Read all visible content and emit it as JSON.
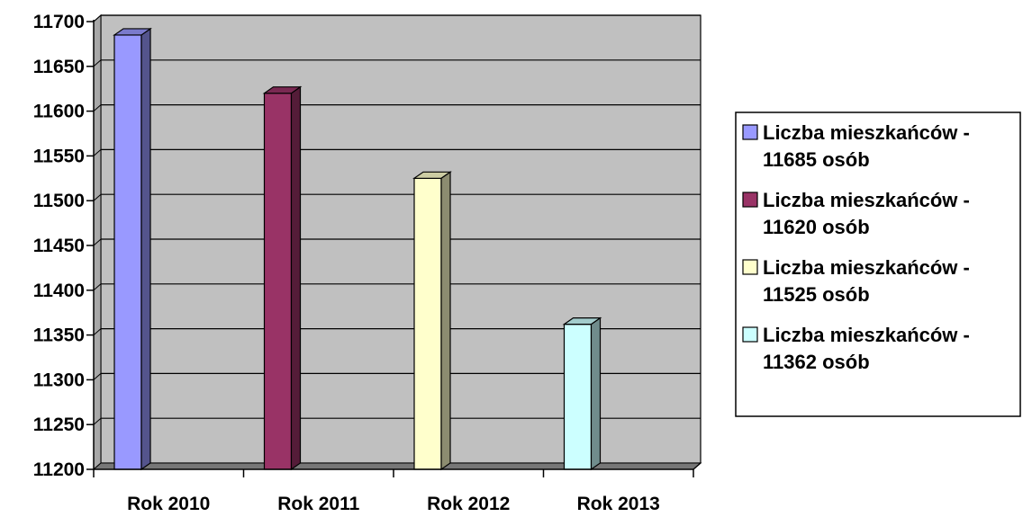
{
  "chart_data": {
    "type": "bar",
    "style": "3d-column",
    "categories": [
      "Rok 2010",
      "Rok 2011",
      "Rok 2012",
      "Rok 2013"
    ],
    "values": [
      11685,
      11620,
      11525,
      11362
    ],
    "colors": [
      "#9999ff",
      "#993366",
      "#ffffcc",
      "#ccffff"
    ],
    "ylim": [
      11200,
      11700
    ],
    "y_ticks": [
      11200,
      11250,
      11300,
      11350,
      11400,
      11450,
      11500,
      11550,
      11600,
      11650,
      11700
    ],
    "y_tick_labels": [
      "11200",
      "11250",
      "11300",
      "11350",
      "11400",
      "11450",
      "11500",
      "11550",
      "11600",
      "11650",
      "11700"
    ],
    "plot_background": "#c0c0c0",
    "grid": true,
    "legend_position": "right",
    "legend": [
      {
        "line1": "Liczba mieszkańców -",
        "line2": "11685 osób"
      },
      {
        "line1": "Liczba mieszkańców -",
        "line2": "11620 osób"
      },
      {
        "line1": "Liczba mieszkańców -",
        "line2": "11525 osób"
      },
      {
        "line1": "Liczba mieszkańców -",
        "line2": "11362 osób"
      }
    ]
  }
}
